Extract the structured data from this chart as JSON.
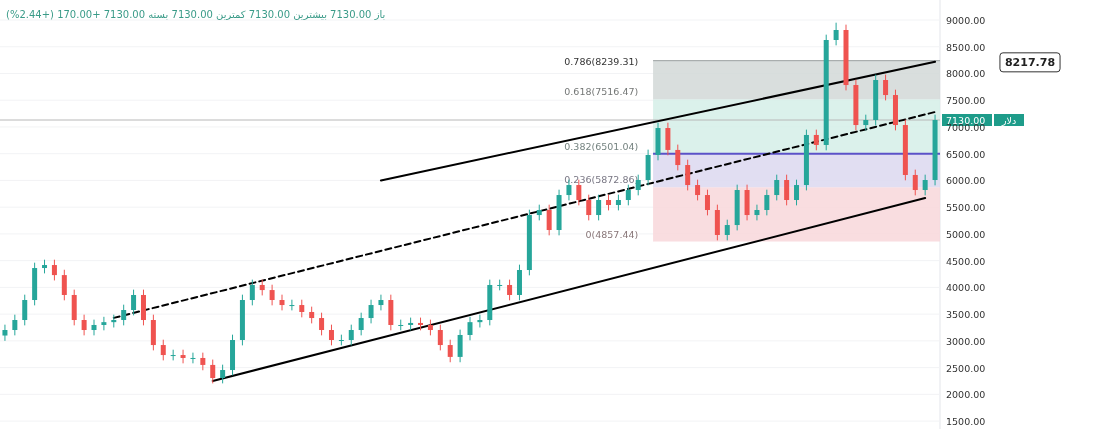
{
  "chart_data": {
    "type": "candlestick",
    "title": "باز 7130.00 بیشترین 7130.00 کمترین 7130.00 بسته 7130.00 +170.00 (+2.44%)",
    "categories": [
      null,
      null,
      null,
      null,
      null,
      null,
      null,
      null,
      null,
      null,
      null,
      null,
      null,
      null,
      null,
      null,
      null,
      null,
      null,
      null,
      null,
      null,
      null,
      null,
      null,
      null,
      null,
      null,
      null,
      null,
      null,
      null,
      null,
      null,
      null,
      null,
      null,
      null,
      null,
      null,
      null,
      null,
      null,
      null,
      null,
      null,
      null,
      null,
      null,
      null,
      null,
      null,
      null,
      null,
      null,
      null,
      null,
      null,
      null,
      null,
      null,
      null,
      null,
      null,
      null,
      null,
      null,
      null,
      null,
      null,
      null,
      null,
      null,
      null,
      null,
      null,
      null,
      null,
      null,
      null,
      null,
      null,
      null,
      null,
      null,
      null,
      null,
      null,
      null,
      null,
      null,
      null,
      null,
      null,
      null
    ],
    "ohlc": [
      [
        3100,
        3303,
        3000,
        3203
      ],
      [
        3203,
        3490,
        3103,
        3390
      ],
      [
        3390,
        3864,
        3290,
        3764
      ],
      [
        3764,
        4462,
        3664,
        4362
      ],
      [
        4362,
        4518,
        4262,
        4418
      ],
      [
        4418,
        4518,
        4130,
        4230
      ],
      [
        4230,
        4330,
        3758,
        3858
      ],
      [
        3858,
        3958,
        3290,
        3390
      ],
      [
        3390,
        3490,
        3103,
        3203
      ],
      [
        3203,
        3397,
        3103,
        3297
      ],
      [
        3297,
        3450,
        3197,
        3350
      ],
      [
        3350,
        3490,
        3250,
        3390
      ],
      [
        3390,
        3677,
        3290,
        3577
      ],
      [
        3577,
        3958,
        3477,
        3858
      ],
      [
        3858,
        3958,
        3290,
        3390
      ],
      [
        3390,
        3490,
        2822,
        2922
      ],
      [
        2922,
        3022,
        2635,
        2735
      ],
      [
        2735,
        2835,
        2635,
        2735
      ],
      [
        2735,
        2835,
        2580,
        2680
      ],
      [
        2680,
        2780,
        2580,
        2680
      ],
      [
        2680,
        2780,
        2450,
        2550
      ],
      [
        2550,
        2650,
        2205,
        2305
      ],
      [
        2305,
        2555,
        2205,
        2455
      ],
      [
        2455,
        3116,
        2355,
        3016
      ],
      [
        3016,
        3864,
        2916,
        3764
      ],
      [
        3764,
        4145,
        3664,
        4045
      ],
      [
        4045,
        4145,
        3850,
        3950
      ],
      [
        3950,
        4050,
        3664,
        3764
      ],
      [
        3764,
        3864,
        3570,
        3670
      ],
      [
        3670,
        3770,
        3570,
        3670
      ],
      [
        3670,
        3770,
        3440,
        3540
      ],
      [
        3540,
        3640,
        3327,
        3427
      ],
      [
        3427,
        3527,
        3103,
        3203
      ],
      [
        3203,
        3303,
        2916,
        3016
      ],
      [
        3016,
        3116,
        2916,
        3016
      ],
      [
        3016,
        3303,
        2916,
        3203
      ],
      [
        3203,
        3527,
        3103,
        3427
      ],
      [
        3427,
        3770,
        3327,
        3670
      ],
      [
        3670,
        3864,
        3570,
        3764
      ],
      [
        3764,
        3864,
        3197,
        3297
      ],
      [
        3297,
        3397,
        3197,
        3297
      ],
      [
        3297,
        3435,
        3197,
        3335
      ],
      [
        3335,
        3435,
        3197,
        3297
      ],
      [
        3297,
        3397,
        3103,
        3203
      ],
      [
        3203,
        3303,
        2822,
        2922
      ],
      [
        2922,
        3022,
        2600,
        2700
      ],
      [
        2700,
        3210,
        2600,
        3110
      ],
      [
        3110,
        3450,
        3010,
        3350
      ],
      [
        3350,
        3490,
        3250,
        3390
      ],
      [
        3390,
        4145,
        3290,
        4045
      ],
      [
        4045,
        4145,
        3945,
        4045
      ],
      [
        4045,
        4145,
        3758,
        3858
      ],
      [
        3858,
        4425,
        3758,
        4325
      ],
      [
        4325,
        5453,
        4225,
        5353
      ],
      [
        5353,
        5547,
        5253,
        5447
      ],
      [
        5447,
        5547,
        4973,
        5073
      ],
      [
        5073,
        5827,
        4973,
        5727
      ],
      [
        5727,
        6014,
        5627,
        5914
      ],
      [
        5914,
        6014,
        5534,
        5634
      ],
      [
        5634,
        5734,
        5253,
        5353
      ],
      [
        5353,
        5734,
        5253,
        5634
      ],
      [
        5634,
        5734,
        5440,
        5540
      ],
      [
        5540,
        5734,
        5440,
        5634
      ],
      [
        5634,
        5921,
        5534,
        5821
      ],
      [
        5821,
        6108,
        5721,
        6008
      ],
      [
        6008,
        6576,
        5908,
        6476
      ],
      [
        6476,
        7080,
        6376,
        6980
      ],
      [
        6980,
        7080,
        6470,
        6570
      ],
      [
        6570,
        6670,
        6188,
        6288
      ],
      [
        6288,
        6388,
        5814,
        5914
      ],
      [
        5914,
        6014,
        5627,
        5727
      ],
      [
        5727,
        5827,
        5347,
        5447
      ],
      [
        5447,
        5547,
        4880,
        4980
      ],
      [
        4980,
        5266,
        4880,
        5166
      ],
      [
        5166,
        5921,
        5066,
        5821
      ],
      [
        5821,
        5921,
        5253,
        5353
      ],
      [
        5353,
        5547,
        5253,
        5447
      ],
      [
        5447,
        5827,
        5347,
        5727
      ],
      [
        5727,
        6108,
        5627,
        6008
      ],
      [
        6008,
        6108,
        5534,
        5634
      ],
      [
        5634,
        6014,
        5534,
        5914
      ],
      [
        5914,
        6950,
        5814,
        6850
      ],
      [
        6850,
        6950,
        6563,
        6663
      ],
      [
        6663,
        8726,
        6563,
        8626
      ],
      [
        8626,
        8950,
        8526,
        8813
      ],
      [
        8813,
        8913,
        7684,
        7784
      ],
      [
        7784,
        7884,
        6936,
        7036
      ],
      [
        7036,
        7230,
        6936,
        7130
      ],
      [
        7130,
        7978,
        7030,
        7878
      ],
      [
        7878,
        7978,
        7497,
        7597
      ],
      [
        7597,
        7697,
        6936,
        7036
      ],
      [
        7036,
        7136,
        6002,
        6102
      ],
      [
        6102,
        6202,
        5721,
        5821
      ],
      [
        5821,
        6108,
        5721,
        6008
      ],
      [
        6008,
        7230,
        5908,
        7130
      ]
    ],
    "colors": [
      "#26a69a",
      "#26a69a",
      "#26a69a",
      "#26a69a",
      "#26a69a",
      "#ef5350",
      "#ef5350",
      "#ef5350",
      "#ef5350",
      "#26a69a",
      "#26a69a",
      "#26a69a",
      "#26a69a",
      "#26a69a",
      "#ef5350",
      "#ef5350",
      "#ef5350",
      "#26a69a",
      "#ef5350",
      "#26a69a",
      "#ef5350",
      "#ef5350",
      "#26a69a",
      "#26a69a",
      "#26a69a",
      "#26a69a",
      "#ef5350",
      "#ef5350",
      "#ef5350",
      "#26a69a",
      "#ef5350",
      "#ef5350",
      "#ef5350",
      "#ef5350",
      "#26a69a",
      "#26a69a",
      "#26a69a",
      "#26a69a",
      "#26a69a",
      "#ef5350",
      "#26a69a",
      "#26a69a",
      "#ef5350",
      "#ef5350",
      "#ef5350",
      "#ef5350",
      "#26a69a",
      "#26a69a",
      "#26a69a",
      "#26a69a",
      "#26a69a",
      "#ef5350",
      "#26a69a",
      "#26a69a",
      "#26a69a",
      "#ef5350",
      "#26a69a",
      "#26a69a",
      "#ef5350",
      "#ef5350",
      "#26a69a",
      "#ef5350",
      "#26a69a",
      "#26a69a",
      "#26a69a",
      "#26a69a",
      "#26a69a",
      "#ef5350",
      "#ef5350",
      "#ef5350",
      "#ef5350",
      "#ef5350",
      "#ef5350",
      "#26a69a",
      "#26a69a",
      "#ef5350",
      "#26a69a",
      "#26a69a",
      "#26a69a",
      "#ef5350",
      "#26a69a",
      "#26a69a",
      "#ef5350",
      "#26a69a",
      "#26a69a",
      "#ef5350",
      "#ef5350",
      "#26a69a",
      "#26a69a",
      "#ef5350",
      "#ef5350",
      "#ef5350",
      "#ef5350",
      "#26a69a",
      "#26a69a"
    ],
    "series": [
      {
        "type": "line",
        "color": "#000000",
        "line_style": "solid",
        "values": [
          null,
          null,
          null,
          null,
          null,
          null,
          null,
          null,
          null,
          null,
          null,
          null,
          null,
          null,
          null,
          null,
          null,
          null,
          null,
          null,
          null,
          null,
          null,
          null,
          null,
          null,
          null,
          null,
          null,
          null,
          null,
          null,
          null,
          null,
          null,
          null,
          null,
          null,
          6000,
          null,
          null,
          null,
          null,
          null,
          null,
          null,
          null,
          null,
          null,
          null,
          null,
          null,
          null,
          null,
          null,
          null,
          null,
          null,
          null,
          null,
          null,
          null,
          null,
          null,
          null,
          null,
          null,
          null,
          null,
          null,
          null,
          null,
          null,
          null,
          null,
          null,
          null,
          null,
          null,
          null,
          null,
          null,
          null,
          null,
          null,
          null,
          null,
          null,
          null,
          null,
          null,
          null,
          null,
          null,
          8217.78
        ]
      },
      {
        "type": "line",
        "color": "#000000",
        "line_style": "dashed",
        "values": [
          null,
          null,
          null,
          null,
          null,
          null,
          null,
          null,
          null,
          null,
          null,
          3430,
          null,
          null,
          null,
          null,
          null,
          null,
          null,
          null,
          null,
          null,
          null,
          null,
          null,
          null,
          null,
          null,
          null,
          null,
          null,
          null,
          null,
          null,
          null,
          null,
          null,
          null,
          null,
          null,
          null,
          null,
          null,
          null,
          null,
          null,
          null,
          null,
          null,
          null,
          null,
          null,
          null,
          null,
          null,
          null,
          null,
          null,
          null,
          null,
          null,
          null,
          null,
          null,
          null,
          null,
          null,
          null,
          null,
          null,
          null,
          null,
          null,
          null,
          null,
          null,
          null,
          null,
          null,
          null,
          null,
          null,
          null,
          null,
          null,
          null,
          null,
          null,
          null,
          null,
          null,
          null,
          null,
          null,
          7280
        ]
      },
      {
        "type": "line",
        "color": "#000000",
        "line_style": "solid",
        "values": [
          null,
          null,
          null,
          null,
          null,
          null,
          null,
          null,
          null,
          null,
          null,
          null,
          null,
          null,
          null,
          null,
          null,
          null,
          null,
          null,
          null,
          2250,
          null,
          null,
          null,
          null,
          null,
          null,
          null,
          null,
          null,
          null,
          null,
          null,
          null,
          null,
          null,
          null,
          null,
          null,
          null,
          null,
          null,
          null,
          null,
          null,
          null,
          null,
          null,
          null,
          null,
          null,
          null,
          null,
          null,
          null,
          null,
          null,
          null,
          null,
          null,
          null,
          null,
          null,
          null,
          null,
          null,
          null,
          null,
          null,
          null,
          null,
          null,
          null,
          null,
          null,
          null,
          null,
          null,
          null,
          null,
          null,
          null,
          null,
          null,
          null,
          null,
          null,
          null,
          null,
          null,
          null,
          null,
          5670,
          null
        ]
      }
    ],
    "bands": [
      {
        "axis": "y",
        "from": 4857.44,
        "to": 5872.86,
        "label": "0(4857.44)",
        "color": "#f8d7da"
      },
      {
        "axis": "y",
        "from": 5872.86,
        "to": 6501.04,
        "label": "0.236(5872.86)",
        "color": "#dcd8f0"
      },
      {
        "axis": "y",
        "from": 6501.04,
        "to": 7516.47,
        "label": "0.382(6501.04)",
        "color": "#d5efe8"
      },
      {
        "axis": "y",
        "from": 7516.47,
        "to": 8239.31,
        "label": "0.618(7516.47)",
        "color": "#d2d8d7"
      }
    ],
    "ref_lines": [
      {
        "axis": "y",
        "value": 8239.31,
        "label": "0.786(8239.31)",
        "color": "#9aa0a0"
      },
      {
        "axis": "y",
        "value": 6501.04,
        "label": null,
        "color": "#5b52c8"
      },
      {
        "axis": "y",
        "value": 7130,
        "label": "7130.00",
        "color": "#b8b8b8"
      }
    ],
    "annotations": [
      "8217.78",
      "دلار"
    ],
    "ylim": [
      1352,
      9374
    ],
    "yticks": [
      {
        "value": 1500,
        "label": "1500.00"
      },
      {
        "value": 2000,
        "label": "2000.00"
      },
      {
        "value": 2500,
        "label": "2500.00"
      },
      {
        "value": 3000,
        "label": "3000.00"
      },
      {
        "value": 3500,
        "label": "3500.00"
      },
      {
        "value": 4000,
        "label": "4000.00"
      },
      {
        "value": 4500,
        "label": "4500.00"
      },
      {
        "value": 5000,
        "label": "5000.00"
      },
      {
        "value": 5500,
        "label": "5500.00"
      },
      {
        "value": 6000,
        "label": "6000.00"
      },
      {
        "value": 6500,
        "label": "6500.00"
      },
      {
        "value": 7000,
        "label": "7000.00"
      },
      {
        "value": 7500,
        "label": "7500.00"
      },
      {
        "value": 8000,
        "label": "8000.00"
      },
      {
        "value": 8500,
        "label": "8500.00"
      },
      {
        "value": 9000,
        "label": "9000.00"
      }
    ],
    "tick_labels": "y",
    "grid": "y"
  }
}
